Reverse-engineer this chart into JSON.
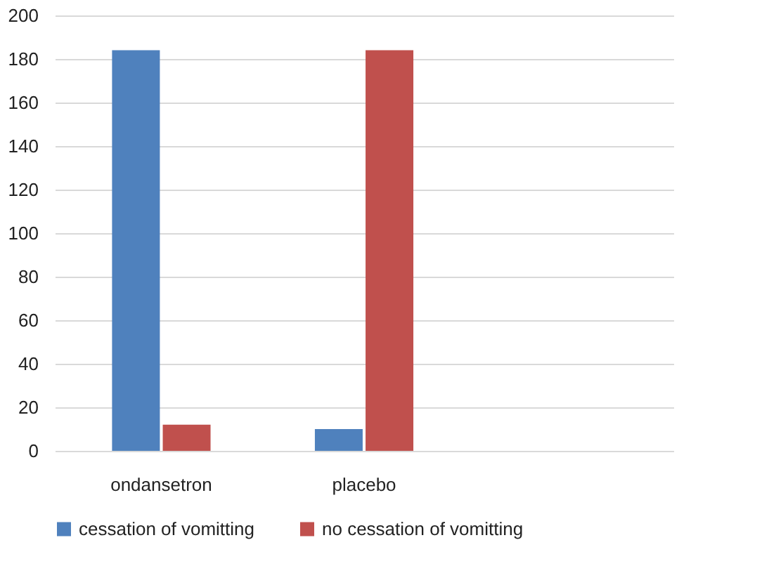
{
  "chart_data": {
    "type": "bar",
    "categories": [
      "ondansetron",
      "placebo",
      null
    ],
    "series": [
      {
        "name": "cessation of vomitting",
        "color": "#4f81bd",
        "values": [
          184,
          10,
          null
        ]
      },
      {
        "name": "no cessation of vomitting",
        "color": "#c0504d",
        "values": [
          12,
          184,
          null
        ]
      }
    ],
    "ylim": [
      0,
      200
    ],
    "yticks": [
      0,
      20,
      40,
      60,
      80,
      100,
      120,
      140,
      160,
      180,
      200
    ],
    "grid": "y",
    "legend": "bottom"
  }
}
